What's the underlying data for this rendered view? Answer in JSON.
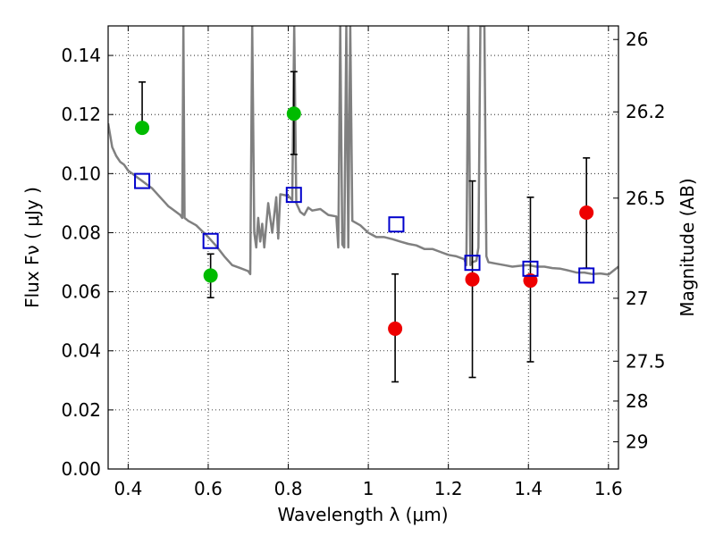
{
  "chart_data": {
    "type": "scatter",
    "xlabel": "Wavelength  λ (μm)",
    "ylabel": "Flux  Fν  ( μJy )",
    "ylabel_right": "Magnitude (AB)",
    "xlim": [
      0.35,
      1.625
    ],
    "ylim": [
      0.0,
      0.15
    ],
    "grid": true,
    "x_ticks": [
      0.4,
      0.6,
      0.8,
      1.0,
      1.2,
      1.4,
      1.6
    ],
    "x_tick_labels": [
      "0.4",
      "0.6",
      "0.8",
      "1",
      "1.2",
      "1.4",
      "1.6"
    ],
    "y_ticks": [
      0.0,
      0.02,
      0.04,
      0.06,
      0.08,
      0.1,
      0.12,
      0.14
    ],
    "y_tick_labels": [
      "0.00",
      "0.02",
      "0.04",
      "0.06",
      "0.08",
      "0.10",
      "0.12",
      "0.14"
    ],
    "right_axis_ticks": [
      {
        "label": "26",
        "flux": 0.1454
      },
      {
        "label": "26.2",
        "flux": 0.1209
      },
      {
        "label": "26.5",
        "flux": 0.0917
      },
      {
        "label": "27",
        "flux": 0.0578
      },
      {
        "label": "27.5",
        "flux": 0.0365
      },
      {
        "label": "28",
        "flux": 0.023
      },
      {
        "label": "29",
        "flux": 0.0092
      }
    ],
    "model_spectrum": {
      "color": "#808080",
      "points": [
        [
          0.35,
          0.117
        ],
        [
          0.36,
          0.109
        ],
        [
          0.37,
          0.106
        ],
        [
          0.38,
          0.104
        ],
        [
          0.39,
          0.103
        ],
        [
          0.4,
          0.101
        ],
        [
          0.41,
          0.1
        ],
        [
          0.42,
          0.099
        ],
        [
          0.43,
          0.098
        ],
        [
          0.44,
          0.097
        ],
        [
          0.45,
          0.096
        ],
        [
          0.46,
          0.095
        ],
        [
          0.47,
          0.0935
        ],
        [
          0.48,
          0.092
        ],
        [
          0.49,
          0.0905
        ],
        [
          0.5,
          0.089
        ],
        [
          0.51,
          0.088
        ],
        [
          0.52,
          0.087
        ],
        [
          0.53,
          0.086
        ],
        [
          0.535,
          0.085
        ],
        [
          0.538,
          0.15
        ],
        [
          0.541,
          0.085
        ],
        [
          0.55,
          0.084
        ],
        [
          0.57,
          0.0825
        ],
        [
          0.6,
          0.0785
        ],
        [
          0.62,
          0.0755
        ],
        [
          0.64,
          0.072
        ],
        [
          0.66,
          0.069
        ],
        [
          0.68,
          0.068
        ],
        [
          0.7,
          0.067
        ],
        [
          0.705,
          0.066
        ],
        [
          0.71,
          0.15
        ],
        [
          0.715,
          0.08
        ],
        [
          0.72,
          0.075
        ],
        [
          0.725,
          0.085
        ],
        [
          0.73,
          0.077
        ],
        [
          0.735,
          0.083
        ],
        [
          0.74,
          0.075
        ],
        [
          0.75,
          0.09
        ],
        [
          0.76,
          0.08
        ],
        [
          0.77,
          0.092
        ],
        [
          0.775,
          0.078
        ],
        [
          0.78,
          0.093
        ],
        [
          0.8,
          0.0925
        ],
        [
          0.81,
          0.091
        ],
        [
          0.815,
          0.15
        ],
        [
          0.82,
          0.09
        ],
        [
          0.83,
          0.087
        ],
        [
          0.84,
          0.086
        ],
        [
          0.85,
          0.0885
        ],
        [
          0.86,
          0.0875
        ],
        [
          0.88,
          0.088
        ],
        [
          0.9,
          0.086
        ],
        [
          0.92,
          0.0855
        ],
        [
          0.925,
          0.075
        ],
        [
          0.93,
          0.15
        ],
        [
          0.935,
          0.076
        ],
        [
          0.94,
          0.075
        ],
        [
          0.945,
          0.15
        ],
        [
          0.95,
          0.075
        ],
        [
          0.955,
          0.15
        ],
        [
          0.96,
          0.084
        ],
        [
          0.98,
          0.0825
        ],
        [
          1.0,
          0.08
        ],
        [
          1.02,
          0.0785
        ],
        [
          1.04,
          0.0785
        ],
        [
          1.06,
          0.0778
        ],
        [
          1.08,
          0.077
        ],
        [
          1.1,
          0.0762
        ],
        [
          1.12,
          0.0757
        ],
        [
          1.14,
          0.0745
        ],
        [
          1.16,
          0.0745
        ],
        [
          1.18,
          0.0735
        ],
        [
          1.2,
          0.0725
        ],
        [
          1.22,
          0.072
        ],
        [
          1.24,
          0.071
        ],
        [
          1.245,
          0.069
        ],
        [
          1.25,
          0.15
        ],
        [
          1.255,
          0.069
        ],
        [
          1.26,
          0.07
        ],
        [
          1.27,
          0.0705
        ],
        [
          1.275,
          0.075
        ],
        [
          1.28,
          0.15
        ],
        [
          1.29,
          0.15
        ],
        [
          1.295,
          0.072
        ],
        [
          1.3,
          0.07
        ],
        [
          1.32,
          0.0695
        ],
        [
          1.34,
          0.069
        ],
        [
          1.36,
          0.0685
        ],
        [
          1.38,
          0.0688
        ],
        [
          1.4,
          0.069
        ],
        [
          1.42,
          0.0685
        ],
        [
          1.44,
          0.0685
        ],
        [
          1.46,
          0.068
        ],
        [
          1.48,
          0.0678
        ],
        [
          1.5,
          0.0672
        ],
        [
          1.52,
          0.0665
        ],
        [
          1.54,
          0.0665
        ],
        [
          1.56,
          0.066
        ],
        [
          1.58,
          0.0662
        ],
        [
          1.6,
          0.0658
        ],
        [
          1.625,
          0.0685
        ]
      ]
    },
    "model_photometry": {
      "color": "#0000cc",
      "points": [
        {
          "x": 0.435,
          "y": 0.0975
        },
        {
          "x": 0.606,
          "y": 0.0772
        },
        {
          "x": 0.814,
          "y": 0.0928
        },
        {
          "x": 1.07,
          "y": 0.0828
        },
        {
          "x": 1.26,
          "y": 0.0698
        },
        {
          "x": 1.405,
          "y": 0.0678
        },
        {
          "x": 1.545,
          "y": 0.0655
        }
      ]
    },
    "detections": {
      "color": "#00bb00",
      "points": [
        {
          "x": 0.435,
          "y": 0.1155,
          "err_lo": 0.1155,
          "err_hi": 0.131
        },
        {
          "x": 0.606,
          "y": 0.0655,
          "err_lo": 0.058,
          "err_hi": 0.0728
        },
        {
          "x": 0.814,
          "y": 0.1203,
          "err_lo": 0.1065,
          "err_hi": 0.1345
        }
      ]
    },
    "upper_limits": {
      "color": "#ee0000",
      "points": [
        {
          "x": 1.067,
          "y": 0.0475,
          "err_lo": 0.0295,
          "err_hi": 0.066
        },
        {
          "x": 1.26,
          "y": 0.0642,
          "err_lo": 0.031,
          "err_hi": 0.0975
        },
        {
          "x": 1.405,
          "y": 0.0638,
          "err_lo": 0.0363,
          "err_hi": 0.092
        },
        {
          "x": 1.545,
          "y": 0.0868,
          "err_lo": 0.068,
          "err_hi": 0.1053
        }
      ]
    }
  }
}
